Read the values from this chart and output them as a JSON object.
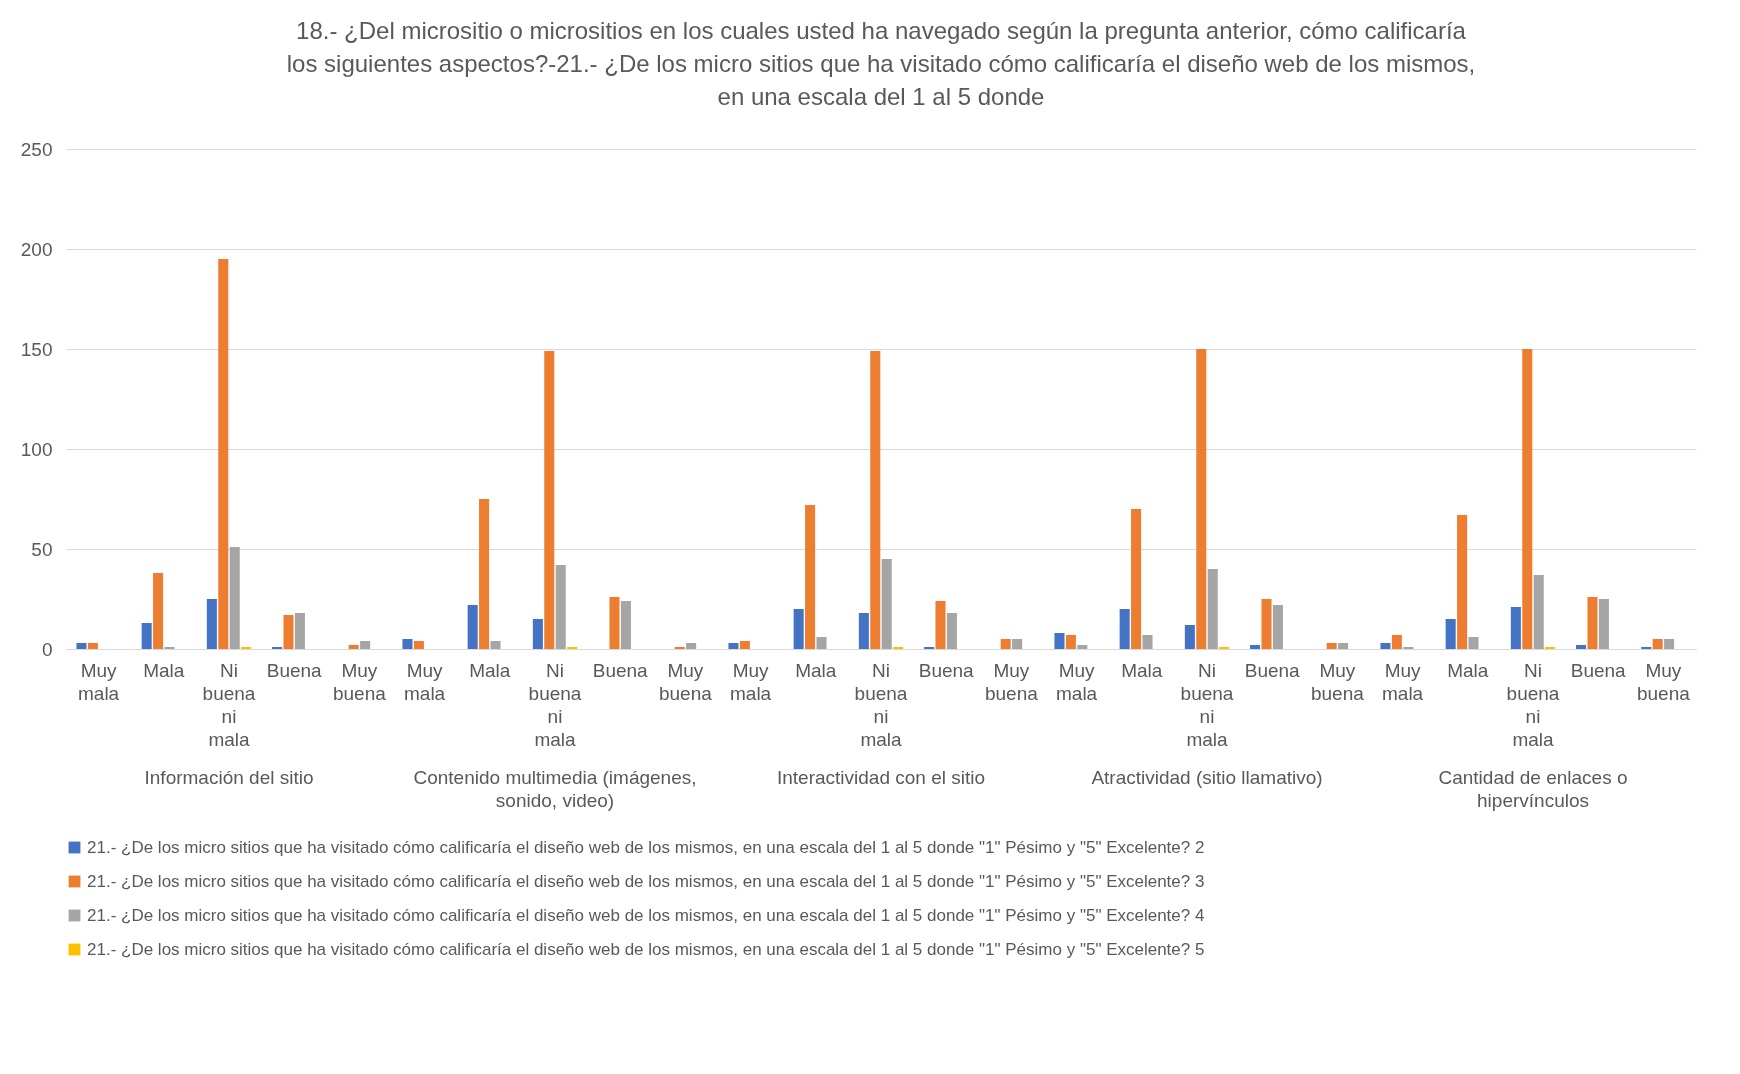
{
  "chart_data": {
    "type": "bar",
    "title": "18.- ¿Del micrositio o micrositios en los cuales usted ha navegado según la pregunta anterior, cómo calificaría los siguientes aspectos?-21.- ¿De los micro sitios que ha visitado cómo calificaría el diseño web de los mismos, en una escala del 1 al 5 donde",
    "categories": [
      "Muy mala",
      "Mala",
      "Ni buena ni mala",
      "Buena",
      "Muy buena",
      "Muy mala",
      "Mala",
      "Ni buena ni mala",
      "Buena",
      "Muy buena",
      "Muy mala",
      "Mala",
      "Ni buena ni mala",
      "Buena",
      "Muy buena",
      "Muy mala",
      "Mala",
      "Ni buena ni mala",
      "Buena",
      "Muy buena",
      "Muy mala",
      "Mala",
      "Ni buena ni mala",
      "Buena",
      "Muy buena"
    ],
    "annotations": [
      "Información del sitio",
      "Contenido multimedia (imágenes, sonido, video)",
      "Interactividad con el sitio",
      "Atractividad (sitio llamativo)",
      "Cantidad de enlaces o hipervínculos"
    ],
    "series": [
      {
        "name": "21.- ¿De los micro sitios que ha visitado cómo calificaría el diseño web de los mismos, en una escala del 1 al 5 donde \"1\" Pésimo y \"5\" Excelente? 2",
        "color": "#4472c4",
        "values": [
          3,
          13,
          25,
          1,
          0,
          5,
          22,
          15,
          0,
          0,
          3,
          20,
          18,
          1,
          0,
          8,
          20,
          12,
          2,
          0,
          3,
          15,
          21,
          2,
          1
        ]
      },
      {
        "name": "21.- ¿De los micro sitios que ha visitado cómo calificaría el diseño web de los mismos, en una escala del 1 al 5 donde \"1\" Pésimo y \"5\" Excelente? 3",
        "color": "#ed7d31",
        "values": [
          3,
          38,
          195,
          17,
          2,
          4,
          75,
          149,
          26,
          1,
          4,
          72,
          149,
          24,
          5,
          7,
          70,
          150,
          25,
          3,
          7,
          67,
          150,
          26,
          5
        ]
      },
      {
        "name": "21.- ¿De los micro sitios que ha visitado cómo calificaría el diseño web de los mismos, en una escala del 1 al 5 donde \"1\" Pésimo y \"5\" Excelente? 4",
        "color": "#a5a5a5",
        "values": [
          0,
          1,
          51,
          18,
          4,
          0,
          4,
          42,
          24,
          3,
          0,
          6,
          45,
          18,
          5,
          2,
          7,
          40,
          22,
          3,
          1,
          6,
          37,
          25,
          5
        ]
      },
      {
        "name": "21.- ¿De los micro sitios que ha visitado cómo calificaría el diseño web de los mismos, en una escala del 1 al 5 donde \"1\" Pésimo y \"5\" Excelente? 5",
        "color": "#ffc000",
        "values": [
          0,
          0,
          1,
          0,
          0,
          0,
          0,
          1,
          0,
          0,
          0,
          0,
          1,
          0,
          0,
          0,
          0,
          1,
          0,
          0,
          0,
          0,
          1,
          0,
          0
        ]
      }
    ],
    "ylim": [
      0,
      250
    ],
    "yticks": [
      0,
      50,
      100,
      150,
      200,
      250
    ],
    "grid": "y",
    "legend": "bottom"
  }
}
